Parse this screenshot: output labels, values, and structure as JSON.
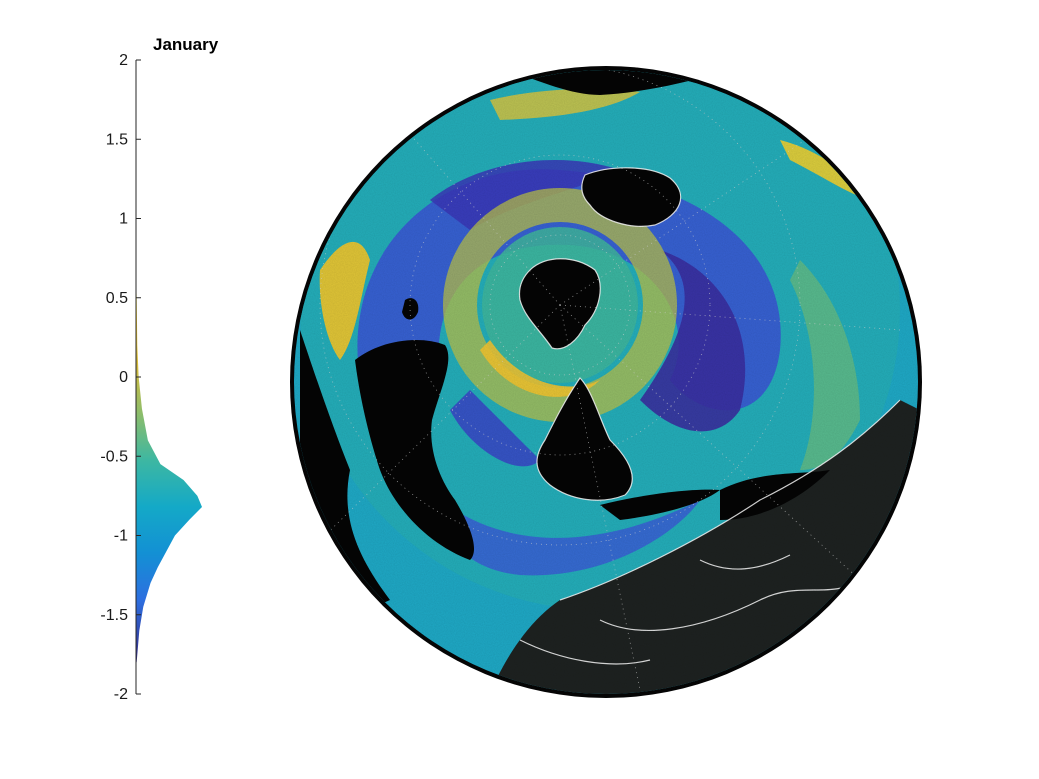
{
  "title": "January",
  "histogram": {
    "ticks": [
      {
        "value": 2,
        "label": "2"
      },
      {
        "value": 1.5,
        "label": "1.5"
      },
      {
        "value": 1,
        "label": "1"
      },
      {
        "value": 0.5,
        "label": "0.5"
      },
      {
        "value": 0,
        "label": "0"
      },
      {
        "value": -0.5,
        "label": "-0.5"
      },
      {
        "value": -1,
        "label": "-1"
      },
      {
        "value": -1.5,
        "label": "-1.5"
      },
      {
        "value": -2,
        "label": "-2"
      }
    ],
    "ylim": [
      -2,
      2
    ],
    "distribution": [
      {
        "y": 0.65,
        "d": 0.0
      },
      {
        "y": 0.5,
        "d": 0.01
      },
      {
        "y": 0.2,
        "d": 0.02
      },
      {
        "y": 0.0,
        "d": 0.04
      },
      {
        "y": -0.2,
        "d": 0.09
      },
      {
        "y": -0.4,
        "d": 0.18
      },
      {
        "y": -0.55,
        "d": 0.37
      },
      {
        "y": -0.65,
        "d": 0.72
      },
      {
        "y": -0.75,
        "d": 0.93
      },
      {
        "y": -0.82,
        "d": 1.0
      },
      {
        "y": -0.9,
        "d": 0.81
      },
      {
        "y": -1.0,
        "d": 0.59
      },
      {
        "y": -1.1,
        "d": 0.46
      },
      {
        "y": -1.2,
        "d": 0.33
      },
      {
        "y": -1.3,
        "d": 0.22
      },
      {
        "y": -1.45,
        "d": 0.11
      },
      {
        "y": -1.6,
        "d": 0.05
      },
      {
        "y": -1.8,
        "d": 0.01
      }
    ]
  },
  "colors": {
    "parula_low": "#352a87",
    "parula_mid": "#1fa2d8",
    "parula_teal": "#33b8a4",
    "parula_high": "#f9d31f",
    "land": "#050505",
    "ice_region": "#1e2221",
    "coastline": "#ffffff"
  }
}
